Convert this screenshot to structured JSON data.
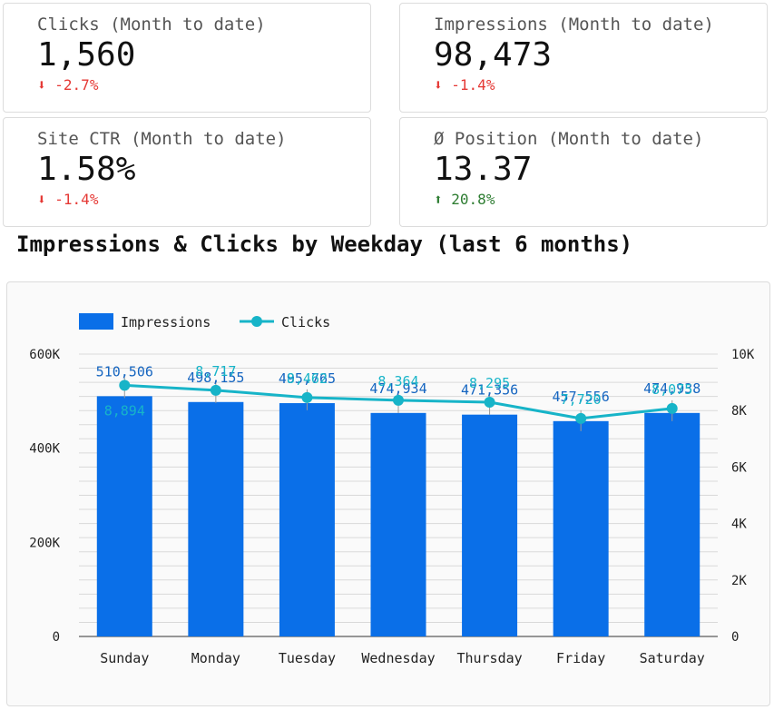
{
  "cards": [
    {
      "label": "Clicks (Month to date)",
      "value": "1,560",
      "arrow": "⬇",
      "delta": "-2.7%",
      "direction": "down"
    },
    {
      "label": "Impressions (Month to date)",
      "value": "98,473",
      "arrow": "⬇",
      "delta": "-1.4%",
      "direction": "down"
    },
    {
      "label": "Site CTR (Month to date)",
      "value": "1.58%",
      "arrow": "⬇",
      "delta": "-1.4%",
      "direction": "down"
    },
    {
      "label": "Ø Position (Month to date)",
      "value": "13.37",
      "arrow": "⬆",
      "delta": "20.8%",
      "direction": "up"
    }
  ],
  "chart_data": {
    "type": "bar",
    "title": "Impressions & Clicks by Weekday (last 6 months)",
    "categories": [
      "Sunday",
      "Monday",
      "Tuesday",
      "Wednesday",
      "Thursday",
      "Friday",
      "Saturday"
    ],
    "series": [
      {
        "name": "Impressions",
        "type": "bar",
        "axis": "left",
        "color": "#0a6fe8",
        "values": [
          510506,
          498155,
          495765,
          474934,
          471356,
          457556,
          474938
        ],
        "labels": [
          "510,506",
          "498,155",
          "495,765",
          "474,934",
          "471,356",
          "457,556",
          "474,938"
        ]
      },
      {
        "name": "Clicks",
        "type": "line",
        "axis": "right",
        "color": "#17b4c8",
        "values": [
          8894,
          8717,
          8462,
          8364,
          8295,
          7720,
          8075
        ],
        "labels": [
          "8,894",
          "8,717",
          "8,462",
          "8,364",
          "8,295",
          "7,720",
          "8,075"
        ]
      }
    ],
    "left_axis": {
      "ylim": [
        0,
        600000
      ],
      "ticks": [
        0,
        200000,
        400000,
        600000
      ],
      "tick_labels": [
        "0",
        "200K",
        "400K",
        "600K"
      ]
    },
    "right_axis": {
      "ylim": [
        0,
        10000
      ],
      "ticks": [
        0,
        2000,
        4000,
        6000,
        8000,
        10000
      ],
      "tick_labels": [
        "0",
        "2K",
        "4K",
        "6K",
        "8K",
        "10K"
      ]
    },
    "grid": true,
    "legend": "top-left"
  }
}
